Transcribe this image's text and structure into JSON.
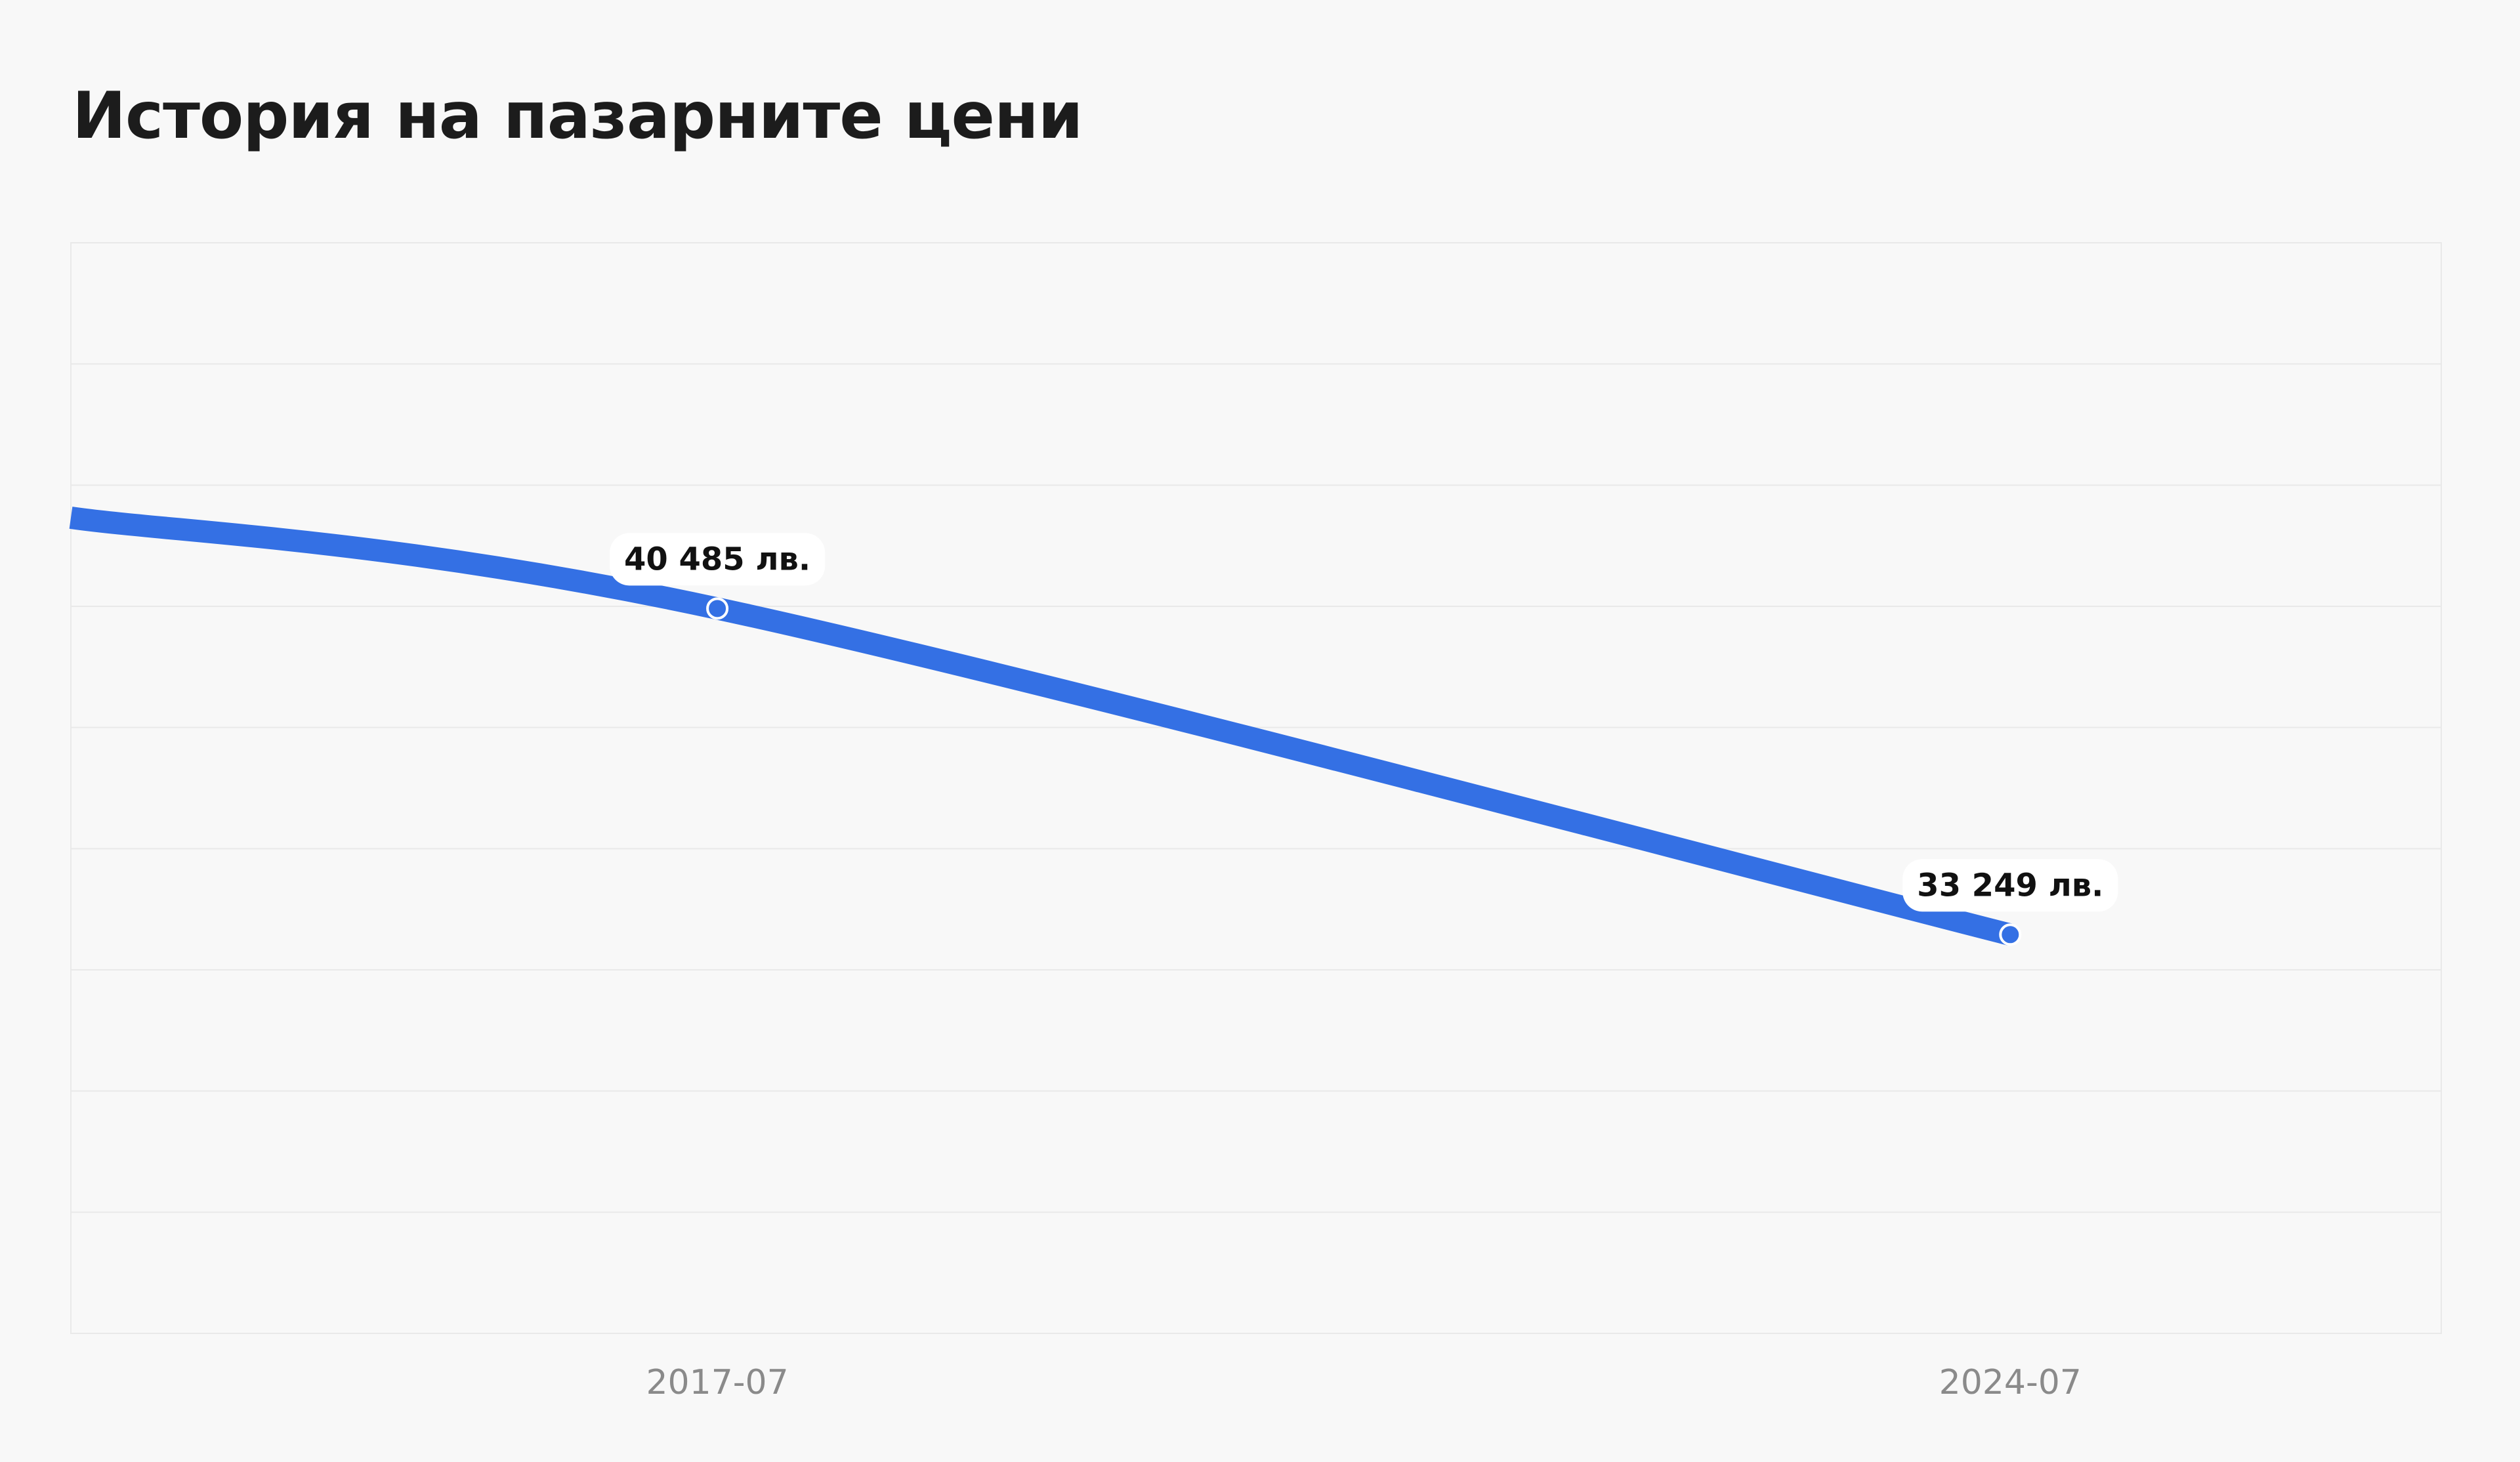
{
  "page": {
    "title": "История на пазарните цени"
  },
  "colors": {
    "background": "#f8f8f8",
    "line": "#3470e4",
    "grid": "#e9e9e9",
    "tick_text": "#8a8a8a",
    "label_text": "#111111"
  },
  "chart_data": {
    "type": "line",
    "title": "История на пазарните цени",
    "xlabel": "",
    "ylabel": "",
    "grid": true,
    "legend": "none",
    "x": [
      "2014-01",
      "2017-07",
      "2024-07",
      "2026-11"
    ],
    "x_ticks": [
      "2017-07",
      "2024-07"
    ],
    "series": [
      {
        "values": [
          42500,
          40485,
          33249,
          null
        ],
        "labels": [
          "",
          "40 485 лв.",
          "33 249 лв.",
          ""
        ]
      }
    ],
    "ylim": [
      24400,
      48600
    ]
  }
}
